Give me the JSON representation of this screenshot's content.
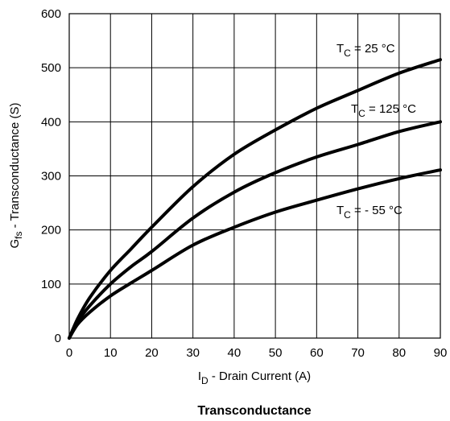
{
  "chart_data": {
    "type": "line",
    "title": "Transconductance",
    "xlabel": {
      "main": "I",
      "sub": "D",
      "rest": "  -  Drain Current (A)"
    },
    "ylabel": {
      "main": "G",
      "sub": "fs",
      "rest": "  -  Transconductance (S)"
    },
    "xlim": [
      0,
      90
    ],
    "ylim": [
      0,
      600
    ],
    "xticks": [
      0,
      10,
      20,
      30,
      40,
      50,
      60,
      70,
      80,
      90
    ],
    "yticks": [
      0,
      100,
      200,
      300,
      400,
      500,
      600
    ],
    "grid": true,
    "series": [
      {
        "name": "T_C = 25 °C",
        "label": {
          "main": "T",
          "sub": "C",
          "rest": " = 25 °C"
        },
        "x": [
          0,
          2,
          5,
          10,
          15,
          20,
          30,
          40,
          50,
          60,
          70,
          80,
          90
        ],
        "y": [
          0,
          35,
          75,
          125,
          165,
          205,
          280,
          340,
          385,
          425,
          458,
          490,
          515
        ]
      },
      {
        "name": "T_C = 125 °C",
        "label": {
          "main": "T",
          "sub": "C",
          "rest": " = 125 °C"
        },
        "x": [
          0,
          2,
          5,
          10,
          15,
          20,
          30,
          40,
          50,
          60,
          70,
          80,
          90
        ],
        "y": [
          0,
          30,
          60,
          100,
          132,
          160,
          222,
          270,
          306,
          335,
          358,
          382,
          400
        ]
      },
      {
        "name": "T_C = - 55 °C",
        "label": {
          "main": "T",
          "sub": "C",
          "rest": " = - 55 °C"
        },
        "x": [
          0,
          2,
          5,
          10,
          15,
          20,
          30,
          40,
          50,
          60,
          70,
          80,
          90
        ],
        "y": [
          0,
          25,
          48,
          78,
          102,
          125,
          172,
          205,
          233,
          255,
          276,
          295,
          311
        ]
      }
    ]
  }
}
